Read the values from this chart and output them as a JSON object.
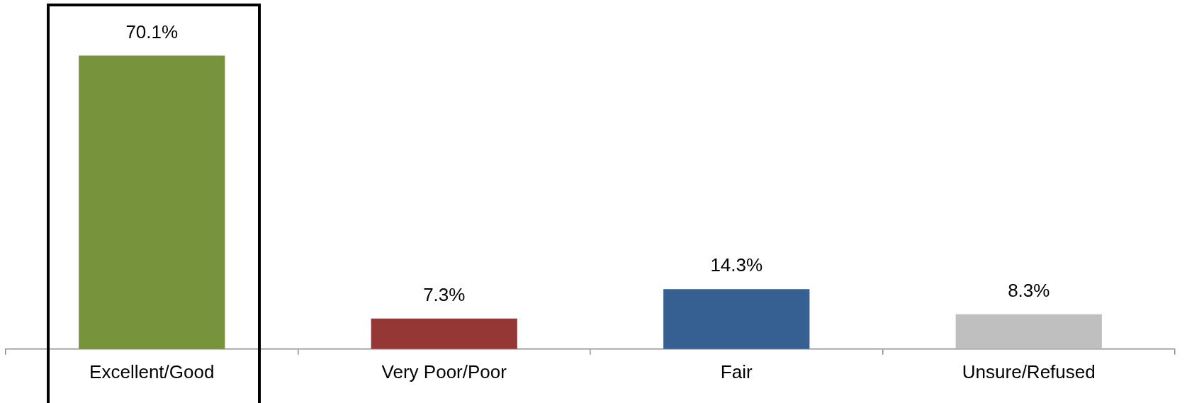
{
  "chart_data": {
    "type": "bar",
    "categories": [
      "Excellent/Good",
      "Very Poor/Poor",
      "Fair",
      "Unsure/Refused"
    ],
    "values": [
      70.1,
      7.3,
      14.3,
      8.3
    ],
    "colors": [
      "#77933c",
      "#953735",
      "#376092",
      "#bfbfbf"
    ],
    "value_labels": [
      "70.1%",
      "7.3%",
      "14.3%",
      "8.3%"
    ],
    "tick_labels": "x",
    "grid": false,
    "legend": false
  }
}
